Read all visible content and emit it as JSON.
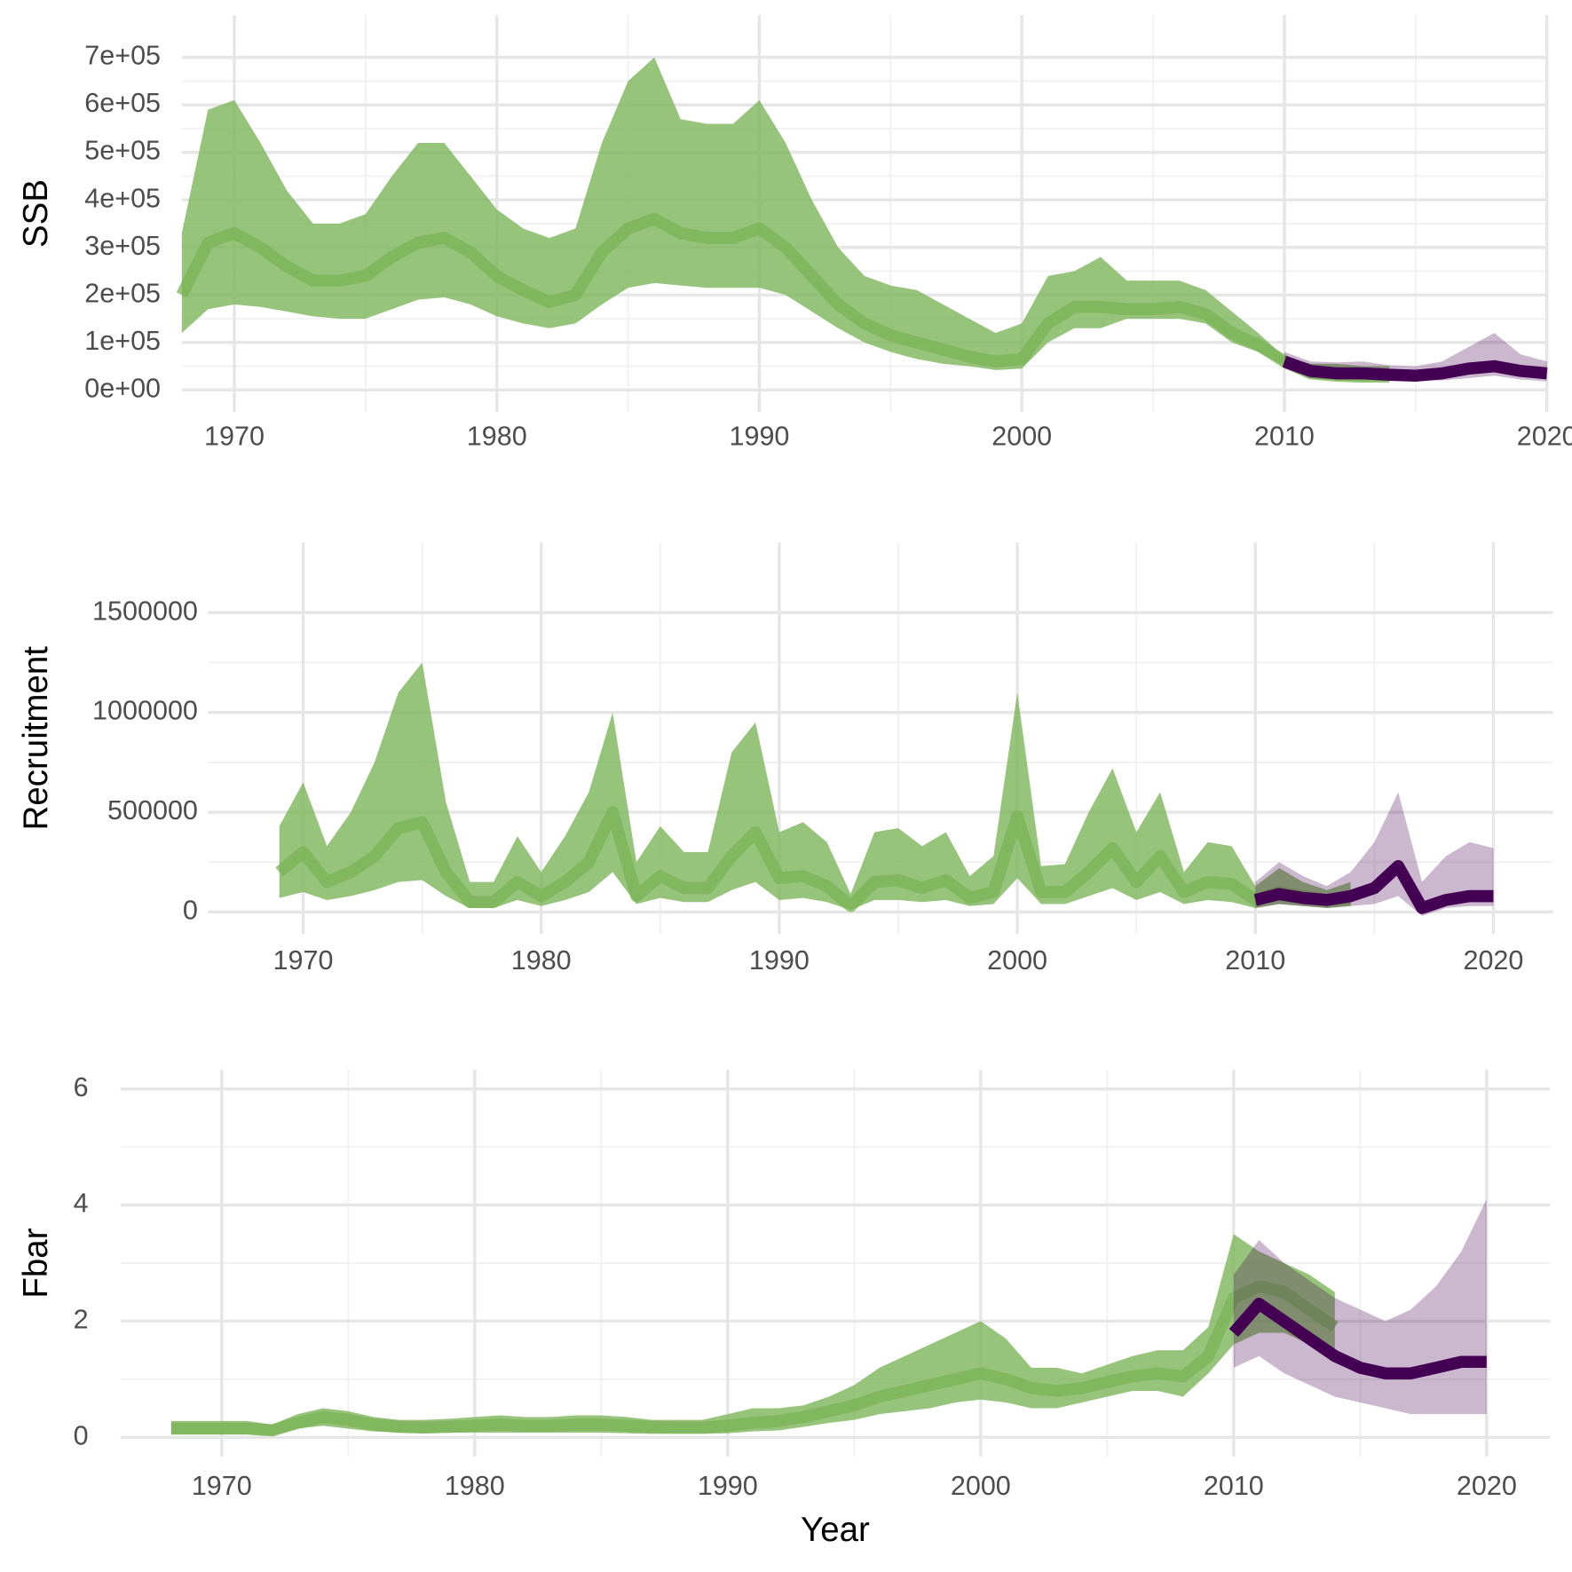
{
  "chart_data": [
    {
      "type": "band",
      "y_label": "SSB",
      "xlim": [
        1968,
        2020
      ],
      "ylim": [
        -46000,
        789000
      ],
      "xticks": [
        1970,
        1980,
        1990,
        2000,
        2010,
        2020
      ],
      "yticks": [
        {
          "value": 0,
          "label": "0e+00"
        },
        {
          "value": 100000,
          "label": "1e+05"
        },
        {
          "value": 200000,
          "label": "2e+05"
        },
        {
          "value": 300000,
          "label": "3e+05"
        },
        {
          "value": 400000,
          "label": "4e+05"
        },
        {
          "value": 500000,
          "label": "5e+05"
        },
        {
          "value": 600000,
          "label": "6e+05"
        },
        {
          "value": 700000,
          "label": "7e+05"
        }
      ],
      "grid": true,
      "series": [
        {
          "color": "#7ab356",
          "x": [
            1968,
            1969,
            1970,
            1971,
            1972,
            1973,
            1974,
            1975,
            1976,
            1977,
            1978,
            1979,
            1980,
            1981,
            1982,
            1983,
            1984,
            1985,
            1986,
            1987,
            1988,
            1989,
            1990,
            1991,
            1992,
            1993,
            1994,
            1995,
            1996,
            1997,
            1998,
            1999,
            2000,
            2001,
            2002,
            2003,
            2004,
            2005,
            2006,
            2007,
            2008,
            2009,
            2010,
            2011,
            2012,
            2013,
            2014
          ],
          "values": [
            200000,
            310000,
            330000,
            300000,
            260000,
            230000,
            230000,
            240000,
            280000,
            310000,
            320000,
            290000,
            240000,
            210000,
            185000,
            200000,
            290000,
            340000,
            360000,
            330000,
            320000,
            320000,
            340000,
            300000,
            240000,
            180000,
            140000,
            115000,
            100000,
            85000,
            70000,
            60000,
            65000,
            140000,
            175000,
            175000,
            170000,
            170000,
            175000,
            160000,
            120000,
            95000,
            60000,
            35000,
            30000,
            28000,
            28000
          ],
          "lower": [
            120000,
            170000,
            180000,
            175000,
            165000,
            155000,
            150000,
            150000,
            170000,
            190000,
            195000,
            180000,
            155000,
            140000,
            130000,
            140000,
            180000,
            215000,
            225000,
            220000,
            215000,
            215000,
            215000,
            200000,
            165000,
            130000,
            100000,
            80000,
            65000,
            55000,
            50000,
            42000,
            45000,
            100000,
            130000,
            130000,
            150000,
            150000,
            150000,
            140000,
            100000,
            80000,
            50000,
            25000,
            20000,
            18000,
            18000
          ],
          "upper": [
            330000,
            590000,
            610000,
            520000,
            420000,
            350000,
            350000,
            370000,
            450000,
            520000,
            520000,
            450000,
            380000,
            340000,
            320000,
            340000,
            520000,
            650000,
            700000,
            570000,
            560000,
            560000,
            610000,
            520000,
            400000,
            300000,
            240000,
            220000,
            210000,
            180000,
            150000,
            120000,
            140000,
            240000,
            250000,
            280000,
            230000,
            230000,
            230000,
            210000,
            165000,
            120000,
            70000,
            55000,
            55000,
            50000,
            50000
          ]
        },
        {
          "color": "#440154",
          "x": [
            2010,
            2011,
            2012,
            2013,
            2014,
            2015,
            2016,
            2017,
            2018,
            2019,
            2020
          ],
          "values": [
            60000,
            40000,
            35000,
            35000,
            32000,
            30000,
            35000,
            45000,
            50000,
            40000,
            35000
          ],
          "lower": [
            45000,
            25000,
            22000,
            22000,
            20000,
            20000,
            20000,
            25000,
            30000,
            22000,
            18000
          ],
          "upper": [
            80000,
            60000,
            58000,
            60000,
            52000,
            50000,
            60000,
            90000,
            120000,
            75000,
            60000
          ]
        }
      ]
    },
    {
      "type": "band",
      "y_label": "Recruitment",
      "xlim": [
        1966,
        2022.5
      ],
      "ylim": [
        -111000,
        1852000
      ],
      "xticks": [
        1970,
        1980,
        1990,
        2000,
        2010,
        2020
      ],
      "yticks": [
        0,
        500000,
        1000000,
        1500000
      ],
      "grid": true,
      "series": [
        {
          "color": "#7ab356",
          "x": [
            1969,
            1970,
            1971,
            1972,
            1973,
            1974,
            1975,
            1976,
            1977,
            1978,
            1979,
            1980,
            1981,
            1982,
            1983,
            1984,
            1985,
            1986,
            1987,
            1988,
            1989,
            1990,
            1991,
            1992,
            1993,
            1994,
            1995,
            1996,
            1997,
            1998,
            1999,
            2000,
            2001,
            2002,
            2003,
            2004,
            2005,
            2006,
            2007,
            2008,
            2009,
            2010,
            2011,
            2012,
            2013,
            2014
          ],
          "values": [
            200000,
            300000,
            150000,
            200000,
            280000,
            420000,
            450000,
            200000,
            50000,
            50000,
            150000,
            80000,
            150000,
            250000,
            500000,
            80000,
            180000,
            120000,
            120000,
            280000,
            400000,
            170000,
            180000,
            130000,
            30000,
            150000,
            160000,
            120000,
            160000,
            70000,
            100000,
            480000,
            100000,
            100000,
            200000,
            320000,
            150000,
            280000,
            100000,
            150000,
            140000,
            60000,
            100000,
            80000,
            60000,
            70000
          ],
          "lower": [
            70000,
            100000,
            60000,
            80000,
            110000,
            150000,
            160000,
            80000,
            20000,
            20000,
            60000,
            30000,
            60000,
            100000,
            200000,
            40000,
            70000,
            50000,
            50000,
            110000,
            150000,
            60000,
            70000,
            50000,
            10000,
            60000,
            60000,
            50000,
            60000,
            30000,
            40000,
            170000,
            40000,
            40000,
            80000,
            120000,
            60000,
            100000,
            40000,
            60000,
            50000,
            20000,
            40000,
            30000,
            20000,
            30000
          ],
          "upper": [
            430000,
            650000,
            330000,
            500000,
            750000,
            1100000,
            1250000,
            550000,
            150000,
            150000,
            380000,
            200000,
            380000,
            600000,
            1000000,
            250000,
            430000,
            300000,
            300000,
            800000,
            950000,
            400000,
            450000,
            350000,
            90000,
            400000,
            420000,
            330000,
            400000,
            180000,
            280000,
            1100000,
            230000,
            240000,
            500000,
            720000,
            400000,
            600000,
            200000,
            350000,
            330000,
            130000,
            220000,
            150000,
            110000,
            150000
          ]
        },
        {
          "color": "#440154",
          "x": [
            2010,
            2011,
            2012,
            2013,
            2014,
            2015,
            2016,
            2017,
            2018,
            2019,
            2020
          ],
          "values": [
            60000,
            90000,
            70000,
            60000,
            80000,
            120000,
            230000,
            20000,
            60000,
            80000,
            80000
          ],
          "lower": [
            20000,
            40000,
            30000,
            20000,
            30000,
            40000,
            80000,
            -20000,
            20000,
            30000,
            30000
          ],
          "upper": [
            150000,
            250000,
            180000,
            130000,
            200000,
            350000,
            600000,
            150000,
            280000,
            350000,
            320000
          ]
        }
      ]
    },
    {
      "type": "band",
      "y_label": "Fbar",
      "x_label": "Year",
      "xlim": [
        1966,
        2022.5
      ],
      "ylim": [
        -0.33,
        6.33
      ],
      "xticks": [
        1970,
        1980,
        1990,
        2000,
        2010,
        2020
      ],
      "yticks": [
        0,
        2,
        4,
        6
      ],
      "grid": true,
      "series": [
        {
          "color": "#7ab356",
          "x": [
            1968,
            1969,
            1970,
            1971,
            1972,
            1973,
            1974,
            1975,
            1976,
            1977,
            1978,
            1979,
            1980,
            1981,
            1982,
            1983,
            1984,
            1985,
            1986,
            1987,
            1988,
            1989,
            1990,
            1991,
            1992,
            1993,
            1994,
            1995,
            1996,
            1997,
            1998,
            1999,
            2000,
            2001,
            2002,
            2003,
            2004,
            2005,
            2006,
            2007,
            2008,
            2009,
            2010,
            2011,
            2012,
            2013,
            2014
          ],
          "values": [
            0.15,
            0.15,
            0.15,
            0.15,
            0.12,
            0.25,
            0.35,
            0.3,
            0.22,
            0.18,
            0.17,
            0.18,
            0.2,
            0.22,
            0.2,
            0.2,
            0.22,
            0.22,
            0.2,
            0.18,
            0.17,
            0.17,
            0.2,
            0.25,
            0.28,
            0.35,
            0.45,
            0.55,
            0.7,
            0.8,
            0.9,
            1.0,
            1.1,
            1.0,
            0.85,
            0.8,
            0.85,
            0.95,
            1.05,
            1.1,
            1.05,
            1.4,
            2.4,
            2.6,
            2.5,
            2.2,
            1.9
          ],
          "lower": [
            0.05,
            0.05,
            0.05,
            0.05,
            0.03,
            0.15,
            0.2,
            0.15,
            0.1,
            0.08,
            0.07,
            0.08,
            0.08,
            0.08,
            0.08,
            0.08,
            0.08,
            0.08,
            0.07,
            0.06,
            0.06,
            0.06,
            0.07,
            0.1,
            0.12,
            0.18,
            0.25,
            0.3,
            0.4,
            0.45,
            0.5,
            0.6,
            0.65,
            0.6,
            0.5,
            0.5,
            0.6,
            0.7,
            0.8,
            0.8,
            0.7,
            1.1,
            1.6,
            1.8,
            1.8,
            1.6,
            1.4
          ],
          "upper": [
            0.28,
            0.28,
            0.28,
            0.28,
            0.22,
            0.4,
            0.5,
            0.45,
            0.35,
            0.3,
            0.3,
            0.32,
            0.35,
            0.38,
            0.35,
            0.35,
            0.38,
            0.38,
            0.35,
            0.3,
            0.3,
            0.3,
            0.4,
            0.5,
            0.5,
            0.55,
            0.7,
            0.9,
            1.2,
            1.4,
            1.6,
            1.8,
            2.0,
            1.7,
            1.2,
            1.2,
            1.1,
            1.25,
            1.4,
            1.5,
            1.5,
            1.9,
            3.5,
            3.2,
            3.0,
            2.8,
            2.5
          ]
        },
        {
          "color": "#440154",
          "x": [
            2010,
            2011,
            2012,
            2013,
            2014,
            2015,
            2016,
            2017,
            2018,
            2019,
            2020
          ],
          "values": [
            1.8,
            2.3,
            2.0,
            1.7,
            1.4,
            1.2,
            1.1,
            1.1,
            1.2,
            1.3,
            1.3
          ],
          "lower": [
            1.2,
            1.4,
            1.1,
            0.9,
            0.7,
            0.6,
            0.5,
            0.4,
            0.4,
            0.4,
            0.4
          ],
          "upper": [
            2.8,
            3.4,
            3.0,
            2.7,
            2.4,
            2.2,
            2.0,
            2.2,
            2.6,
            3.2,
            4.1
          ]
        }
      ]
    }
  ]
}
